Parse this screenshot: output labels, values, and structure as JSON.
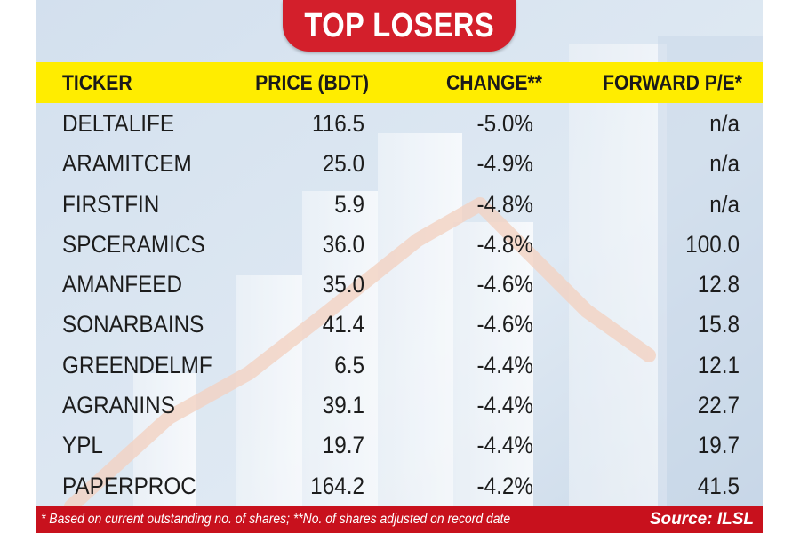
{
  "title": "TOP LOSERS",
  "columns": {
    "ticker": "TICKER",
    "price": "PRICE (BDT)",
    "change": "CHANGE**",
    "pe": "FORWARD P/E*"
  },
  "rows": [
    {
      "ticker": "DELTALIFE",
      "price": "116.5",
      "change": "-5.0%",
      "pe": "n/a"
    },
    {
      "ticker": "ARAMITCEM",
      "price": "25.0",
      "change": "-4.9%",
      "pe": "n/a"
    },
    {
      "ticker": "FIRSTFIN",
      "price": "5.9",
      "change": "-4.8%",
      "pe": "n/a"
    },
    {
      "ticker": "SPCERAMICS",
      "price": "36.0",
      "change": "-4.8%",
      "pe": "100.0"
    },
    {
      "ticker": "AMANFEED",
      "price": "35.0",
      "change": "-4.6%",
      "pe": "12.8"
    },
    {
      "ticker": "SONARBAINS",
      "price": "41.4",
      "change": "-4.6%",
      "pe": "15.8"
    },
    {
      "ticker": "GREENDELMF",
      "price": "6.5",
      "change": "-4.4%",
      "pe": "12.1"
    },
    {
      "ticker": "AGRANINS",
      "price": "39.1",
      "change": "-4.4%",
      "pe": "22.7"
    },
    {
      "ticker": "YPL",
      "price": "19.7",
      "change": "-4.4%",
      "pe": "19.7"
    },
    {
      "ticker": "PAPERPROC",
      "price": "164.2",
      "change": "-4.2%",
      "pe": "41.5"
    }
  ],
  "footer": {
    "note": "* Based on current outstanding no. of shares; **No. of shares adjusted on record date",
    "source": "Source: ILSL"
  },
  "colors": {
    "banner": "#d31f2b",
    "header_bg": "#ffed00",
    "panel_bg": "#d9e5f1",
    "footer_bg": "#c8111d"
  },
  "chart_data": {
    "type": "table",
    "title": "TOP LOSERS",
    "columns": [
      "TICKER",
      "PRICE (BDT)",
      "CHANGE**",
      "FORWARD P/E*"
    ],
    "rows": [
      [
        "DELTALIFE",
        116.5,
        -5.0,
        "n/a"
      ],
      [
        "ARAMITCEM",
        25.0,
        -4.9,
        "n/a"
      ],
      [
        "FIRSTFIN",
        5.9,
        -4.8,
        "n/a"
      ],
      [
        "SPCERAMICS",
        36.0,
        -4.8,
        100.0
      ],
      [
        "AMANFEED",
        35.0,
        -4.6,
        12.8
      ],
      [
        "SONARBAINS",
        41.4,
        -4.6,
        15.8
      ],
      [
        "GREENDELMF",
        6.5,
        -4.4,
        12.1
      ],
      [
        "AGRANINS",
        39.1,
        -4.4,
        22.7
      ],
      [
        "YPL",
        19.7,
        -4.4,
        19.7
      ],
      [
        "PAPERPROC",
        164.2,
        -4.2,
        41.5
      ]
    ],
    "annotations": [
      "* Based on current outstanding no. of shares; **No. of shares adjusted on record date",
      "Source: ILSL"
    ]
  }
}
